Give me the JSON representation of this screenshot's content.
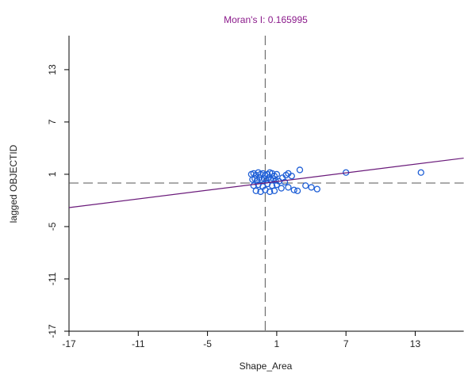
{
  "chart_data": {
    "type": "scatter",
    "title": "Moran's I: 0.165995",
    "x_label": "Shape_Area",
    "y_label": "lagged OBJECTID",
    "xlim": [
      -17,
      17.2
    ],
    "ylim": [
      -17,
      16.9
    ],
    "xticks": [
      -17,
      -11,
      -5,
      1,
      7,
      13
    ],
    "yticks": [
      -17,
      -11,
      -5,
      1,
      7,
      13
    ],
    "xmean": 0,
    "ymean": 0,
    "regression_slope": 0.165995,
    "point_color": "#1f5fd6",
    "line_color": "#6a1a7a",
    "title_color": "#8b1a8b",
    "x": [
      -1.2,
      -1.0,
      -0.8,
      -0.6,
      -0.4,
      -0.2,
      0,
      0.2,
      0.4,
      0.6,
      0.8,
      1.0,
      -1.1,
      -0.9,
      -0.7,
      -0.5,
      -0.3,
      -0.1,
      0.1,
      0.3,
      0.5,
      0.7,
      0.9,
      -1.0,
      -0.6,
      -0.2,
      0.2,
      0.6,
      1.0,
      -0.8,
      -0.4,
      0,
      0.4,
      0.8,
      1.2,
      1.5,
      1.8,
      2.0,
      2.3,
      3.0,
      7.0,
      13.5,
      2.0,
      2.5,
      3.5,
      4.0,
      4.5,
      1.4,
      1.7,
      2.8
    ],
    "y": [
      1.0,
      1.1,
      0.9,
      1.2,
      1.0,
      1.1,
      0.9,
      1.0,
      1.2,
      1.1,
      0.8,
      1.0,
      0.4,
      0.5,
      0.3,
      0.6,
      0.4,
      0.5,
      0.3,
      0.6,
      0.4,
      0.5,
      0.3,
      -0.3,
      -0.2,
      -0.4,
      -0.1,
      -0.3,
      -0.2,
      -0.9,
      -1.0,
      -0.8,
      -1.0,
      -0.9,
      0.2,
      0.6,
      0.9,
      1.1,
      0.8,
      1.5,
      1.2,
      1.2,
      -0.5,
      -0.8,
      -0.3,
      -0.5,
      -0.7,
      -0.6,
      0.1,
      -0.9
    ]
  }
}
